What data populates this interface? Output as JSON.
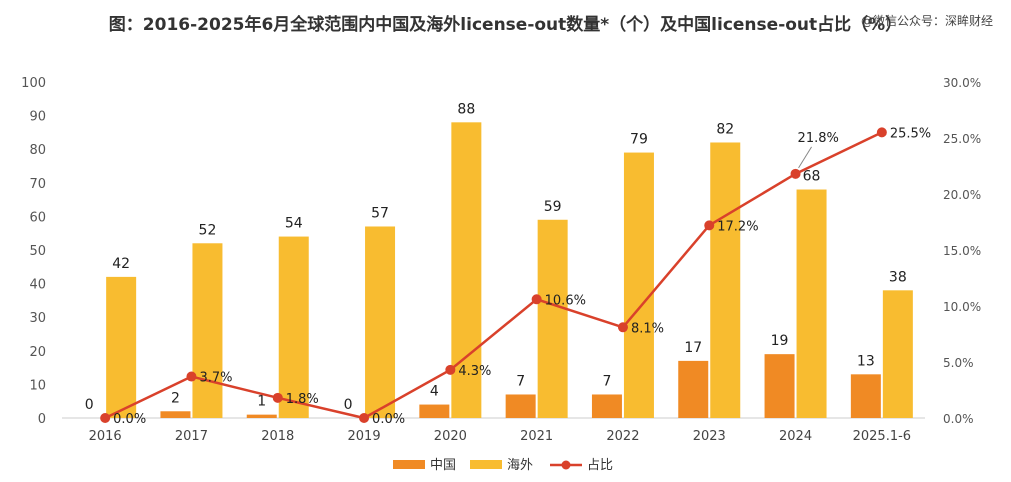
{
  "watermark": "@微信公众号：深眸财经",
  "chart_data": {
    "type": "bar",
    "title": "图：2016-2025年6月全球范围内中国及海外license-out数量*（个）及中国license-out占比（%）",
    "categories": [
      "2016",
      "2017",
      "2018",
      "2019",
      "2020",
      "2021",
      "2022",
      "2023",
      "2024",
      "2025.1-6"
    ],
    "series": [
      {
        "name": "中国",
        "type": "bar",
        "axis": "left",
        "values": [
          0,
          2,
          1,
          0,
          4,
          7,
          7,
          17,
          19,
          13
        ],
        "color": "#F08A24"
      },
      {
        "name": "海外",
        "type": "bar",
        "axis": "left",
        "values": [
          42,
          52,
          54,
          57,
          88,
          59,
          79,
          82,
          68,
          38
        ],
        "color": "#F8BC30"
      },
      {
        "name": "占比",
        "type": "line",
        "axis": "right",
        "values": [
          0.0,
          3.7,
          1.8,
          0.0,
          4.3,
          10.6,
          8.1,
          17.2,
          21.8,
          25.5
        ],
        "labels": [
          "0.0%",
          "3.7%",
          "1.8%",
          "0.0%",
          "4.3%",
          "10.6%",
          "8.1%",
          "17.2%",
          "21.8%",
          "25.5%"
        ],
        "color": "#D9412B"
      }
    ],
    "y_left": {
      "min": 0,
      "max": 100,
      "step": 10,
      "ticks": [
        "0",
        "10",
        "20",
        "30",
        "40",
        "50",
        "60",
        "70",
        "80",
        "90",
        "100"
      ]
    },
    "y_right": {
      "min": 0,
      "max": 30,
      "step": 5,
      "ticks": [
        "0.0%",
        "5.0%",
        "10.0%",
        "15.0%",
        "20.0%",
        "25.0%",
        "30.0%"
      ]
    },
    "grid": false,
    "legend": {
      "position": "bottom",
      "items": [
        "中国",
        "海外",
        "占比"
      ]
    }
  }
}
